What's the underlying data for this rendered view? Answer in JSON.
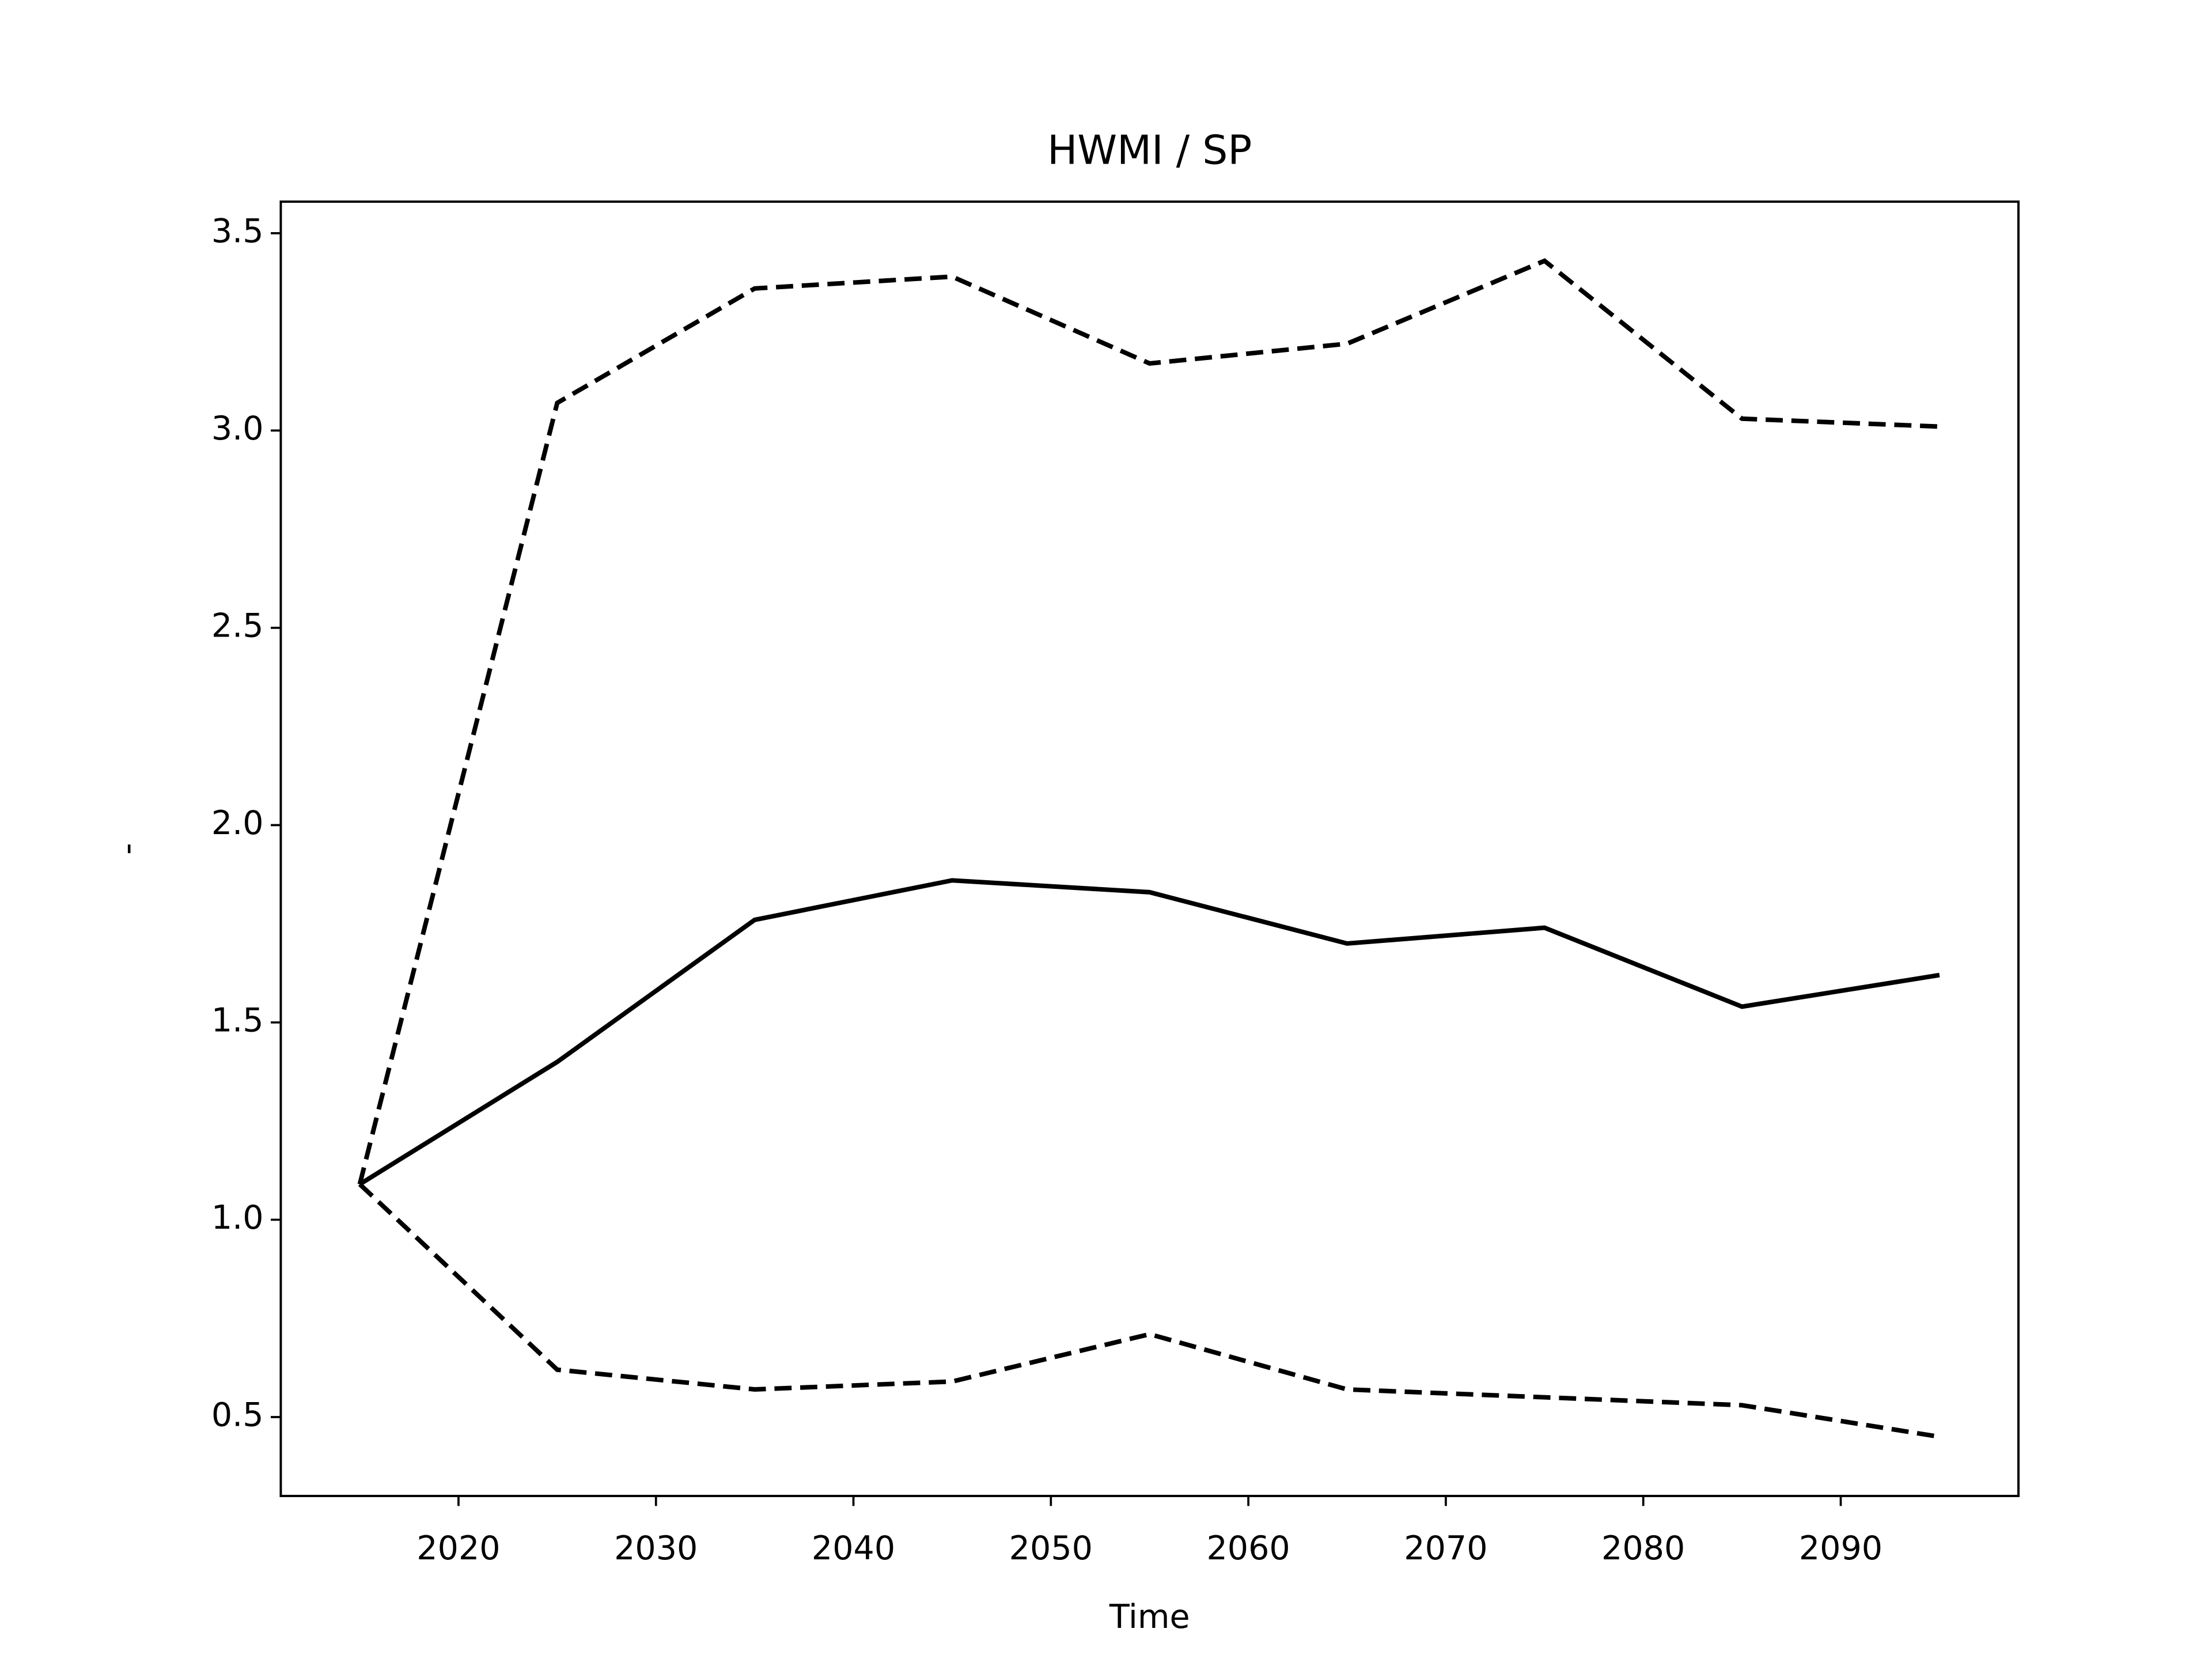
{
  "chart_data": {
    "type": "line",
    "title": "HWMI / SP",
    "xlabel": "Time",
    "ylabel": "-",
    "x": [
      2015,
      2025,
      2035,
      2045,
      2055,
      2065,
      2075,
      2085,
      2095
    ],
    "series": [
      {
        "color": "#000000",
        "linestyle": "solid",
        "values": [
          1.09,
          1.4,
          1.76,
          1.86,
          1.83,
          1.7,
          1.74,
          1.54,
          1.62
        ]
      },
      {
        "color": "#000000",
        "linestyle": "dashed",
        "values": [
          1.09,
          3.07,
          3.36,
          3.39,
          3.17,
          3.22,
          3.43,
          3.03,
          3.01
        ]
      },
      {
        "color": "#000000",
        "linestyle": "dashed",
        "values": [
          1.09,
          0.62,
          0.57,
          0.59,
          0.71,
          0.57,
          0.55,
          0.53,
          0.45
        ]
      }
    ],
    "xlim": [
      2011,
      2099
    ],
    "xticks": [
      2020,
      2030,
      2040,
      2050,
      2060,
      2070,
      2080,
      2090
    ],
    "ylim": [
      0.3,
      3.58
    ],
    "yticks": [
      {
        "value": 0.5,
        "label": "0.5"
      },
      {
        "value": 1.0,
        "label": "1.0"
      },
      {
        "value": 1.5,
        "label": "1.5"
      },
      {
        "value": 2.0,
        "label": "2.0"
      },
      {
        "value": 2.5,
        "label": "2.5"
      },
      {
        "value": 3.0,
        "label": "3.0"
      },
      {
        "value": 3.5,
        "label": "3.5"
      }
    ],
    "grid": false
  }
}
